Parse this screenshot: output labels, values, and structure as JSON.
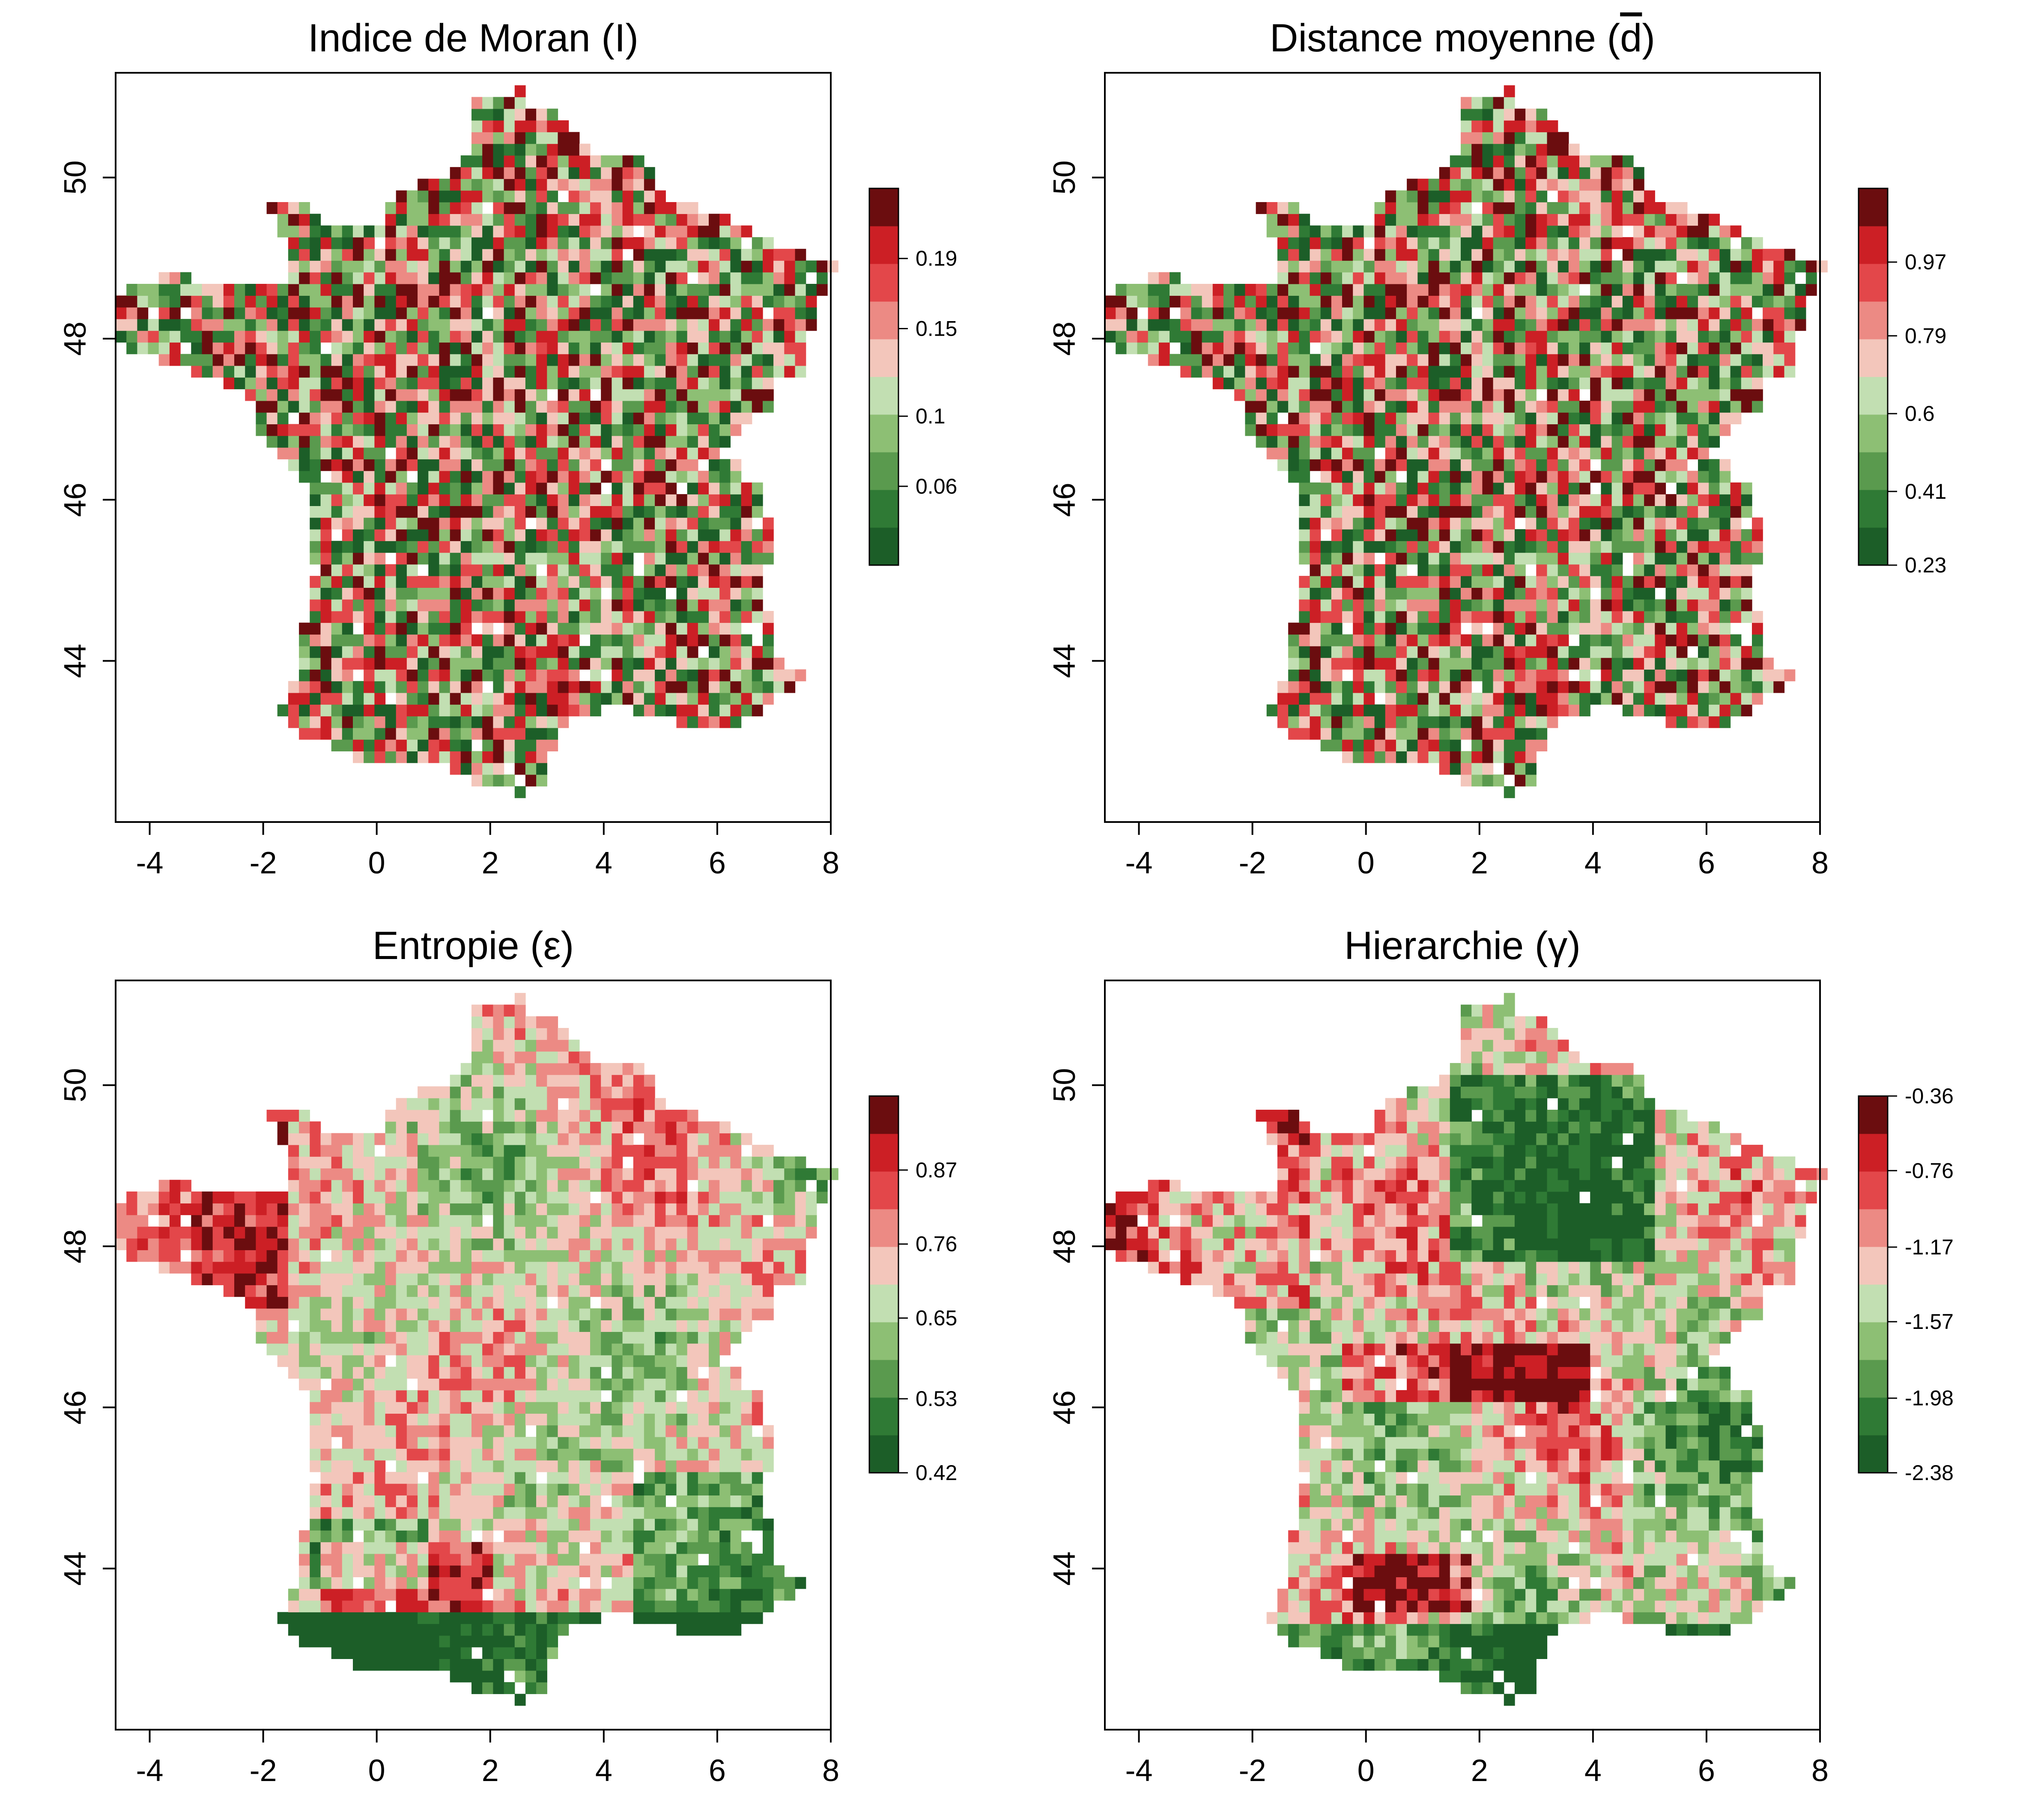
{
  "chart_data": [
    {
      "type": "heatmap",
      "title": "Indice de Moran (I)",
      "title_parts": [
        "Indice de Moran (",
        "I",
        ")"
      ],
      "title_symbol": "I",
      "xlim": [
        -4.6,
        8.0
      ],
      "ylim": [
        42.0,
        51.3
      ],
      "x_ticks": [
        -4,
        -2,
        0,
        2,
        4,
        6,
        8
      ],
      "x_tick_labels": [
        "-4",
        "-2",
        "0",
        "2",
        "4",
        "6",
        "8"
      ],
      "y_ticks": [
        44,
        46,
        48,
        50
      ],
      "y_tick_labels": [
        "44",
        "46",
        "48",
        "50"
      ],
      "grid": false,
      "legend_position": "right",
      "colorbar": {
        "range": [
          0.015,
          0.23
        ],
        "ticks": [
          0.19,
          0.15,
          0.1,
          0.06
        ],
        "tick_labels": [
          "0.19",
          "0.15",
          "0.1",
          "0.06"
        ]
      },
      "pattern": "random"
    },
    {
      "type": "heatmap",
      "title": "Distance moyenne (d)",
      "title_parts": [
        "Distance moyenne (",
        "d",
        ")"
      ],
      "title_symbol": "d",
      "title_overline": true,
      "xlim": [
        -4.6,
        8.0
      ],
      "ylim": [
        42.0,
        51.3
      ],
      "x_ticks": [
        -4,
        -2,
        0,
        2,
        4,
        6,
        8
      ],
      "x_tick_labels": [
        "-4",
        "-2",
        "0",
        "2",
        "4",
        "6",
        "8"
      ],
      "y_ticks": [
        44,
        46,
        48,
        50
      ],
      "y_tick_labels": [
        "44",
        "46",
        "48",
        "50"
      ],
      "grid": false,
      "legend_position": "right",
      "colorbar": {
        "range": [
          0.23,
          1.15
        ],
        "ticks": [
          0.97,
          0.79,
          0.6,
          0.41,
          0.23
        ],
        "tick_labels": [
          "0.97",
          "0.79",
          "0.6",
          "0.41",
          "0.23"
        ]
      },
      "pattern": "random"
    },
    {
      "type": "heatmap",
      "title": "Entropie (ε)",
      "title_parts": [
        "Entropie (",
        "ε",
        ")"
      ],
      "title_symbol": "ε",
      "xlim": [
        -4.6,
        8.0
      ],
      "ylim": [
        42.0,
        51.3
      ],
      "x_ticks": [
        -4,
        -2,
        0,
        2,
        4,
        6,
        8
      ],
      "x_tick_labels": [
        "-4",
        "-2",
        "0",
        "2",
        "4",
        "6",
        "8"
      ],
      "y_ticks": [
        44,
        46,
        48,
        50
      ],
      "y_tick_labels": [
        "44",
        "46",
        "48",
        "50"
      ],
      "grid": false,
      "legend_position": "right",
      "colorbar": {
        "range": [
          0.42,
          0.98
        ],
        "ticks": [
          0.87,
          0.76,
          0.65,
          0.53,
          0.42
        ],
        "tick_labels": [
          "0.87",
          "0.76",
          "0.65",
          "0.53",
          "0.42"
        ]
      },
      "pattern": "smooth-entropy"
    },
    {
      "type": "heatmap",
      "title": "Hierarchie (γ)",
      "title_parts": [
        "Hierarchie (",
        "γ",
        ")"
      ],
      "title_symbol": "γ",
      "xlim": [
        -4.6,
        8.0
      ],
      "ylim": [
        42.0,
        51.3
      ],
      "x_ticks": [
        -4,
        -2,
        0,
        2,
        4,
        6,
        8
      ],
      "x_tick_labels": [
        "-4",
        "-2",
        "0",
        "2",
        "4",
        "6",
        "8"
      ],
      "y_ticks": [
        44,
        46,
        48,
        50
      ],
      "y_tick_labels": [
        "44",
        "46",
        "48",
        "50"
      ],
      "grid": false,
      "legend_position": "right",
      "colorbar": {
        "range": [
          -2.38,
          -0.36
        ],
        "ticks": [
          -0.36,
          -0.76,
          -1.17,
          -1.57,
          -1.98,
          -2.38
        ],
        "tick_labels": [
          "-0.36",
          "-0.76",
          "-1.17",
          "-1.57",
          "-1.98",
          "-2.38"
        ]
      },
      "pattern": "smooth-hierarchy"
    }
  ],
  "palette": [
    "#1c5e28",
    "#2f7a35",
    "#5a9a4e",
    "#8dbf74",
    "#c2dfb2",
    "#f3c6bb",
    "#ec8a84",
    "#e3474a",
    "#cc1f25",
    "#6b0d0f"
  ]
}
